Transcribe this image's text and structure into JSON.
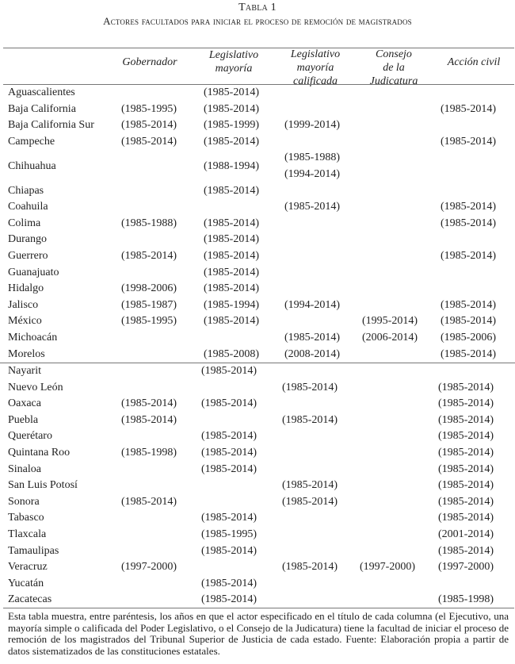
{
  "caption": {
    "label": "Tabla 1",
    "title": "Actores facultados para iniciar el proceso de remoción de magistrados"
  },
  "headers": [
    [
      "Gobernador"
    ],
    [
      "Legislativo",
      "mayoría"
    ],
    [
      "Legislativo",
      "mayoría",
      "calificada"
    ],
    [
      "Consejo",
      "de la",
      "Judicatura"
    ],
    [
      "Acción civil"
    ]
  ],
  "rows": [
    {
      "state": "Aguascalientes",
      "cells": [
        "",
        "(1985-2014)",
        "",
        "",
        ""
      ]
    },
    {
      "state": "Baja California",
      "cells": [
        "(1985-1995)",
        "(1985-2014)",
        "",
        "",
        "(1985-2014)"
      ]
    },
    {
      "state": "Baja California Sur",
      "cells": [
        "(1985-2014)",
        "(1985-1999)",
        "(1999-2014)",
        "",
        ""
      ]
    },
    {
      "state": "Campeche",
      "cells": [
        "(1985-2014)",
        "(1985-2014)",
        "",
        "",
        "(1985-2014)"
      ]
    },
    {
      "state": "Chihuahua",
      "cells": [
        "",
        "(1988-1994)",
        [
          "(1985-1988)",
          "(1994-2014)"
        ],
        "",
        ""
      ]
    },
    {
      "state": "Chiapas",
      "cells": [
        "",
        "(1985-2014)",
        "",
        "",
        ""
      ]
    },
    {
      "state": "Coahuila",
      "cells": [
        "",
        "",
        "(1985-2014)",
        "",
        "(1985-2014)"
      ]
    },
    {
      "state": "Colima",
      "cells": [
        "(1985-1988)",
        "(1985-2014)",
        "",
        "",
        "(1985-2014)"
      ]
    },
    {
      "state": "Durango",
      "cells": [
        "",
        "(1985-2014)",
        "",
        "",
        ""
      ]
    },
    {
      "state": "Guerrero",
      "cells": [
        "(1985-2014)",
        "(1985-2014)",
        "",
        "",
        "(1985-2014)"
      ]
    },
    {
      "state": "Guanajuato",
      "cells": [
        "",
        "(1985-2014)",
        "",
        "",
        ""
      ]
    },
    {
      "state": "Hidalgo",
      "cells": [
        "(1998-2006)",
        "(1985-2014)",
        "",
        "",
        ""
      ]
    },
    {
      "state": "Jalisco",
      "cells": [
        "(1985-1987)",
        "(1985-1994)",
        "(1994-2014)",
        "",
        "(1985-2014)"
      ]
    },
    {
      "state": "México",
      "cells": [
        "(1985-1995)",
        "(1985-2014)",
        "",
        "(1995-2014)",
        "(1985-2014)"
      ]
    },
    {
      "state": "Michoacán",
      "cells": [
        "",
        "",
        "(1985-2014)",
        "(2006-2014)",
        "(1985-2006)"
      ]
    },
    {
      "state": "Morelos",
      "cells": [
        "",
        "(1985-2008)",
        "(2008-2014)",
        "",
        "(1985-2014)"
      ]
    },
    {
      "state": "Nayarit",
      "cells": [
        "",
        "(1985-2014)",
        "",
        "",
        ""
      ]
    },
    {
      "state": "Nuevo León",
      "cells": [
        "",
        "",
        "(1985-2014)",
        "",
        "(1985-2014)"
      ]
    },
    {
      "state": "Oaxaca",
      "cells": [
        "(1985-2014)",
        "(1985-2014)",
        "",
        "",
        "(1985-2014)"
      ]
    },
    {
      "state": "Puebla",
      "cells": [
        "(1985-2014)",
        "",
        "(1985-2014)",
        "",
        "(1985-2014)"
      ]
    },
    {
      "state": "Querétaro",
      "cells": [
        "",
        "(1985-2014)",
        "",
        "",
        "(1985-2014)"
      ]
    },
    {
      "state": "Quintana Roo",
      "cells": [
        "(1985-1998)",
        "(1985-2014)",
        "",
        "",
        "(1985-2014)"
      ]
    },
    {
      "state": "Sinaloa",
      "cells": [
        "",
        "(1985-2014)",
        "",
        "",
        "(1985-2014)"
      ]
    },
    {
      "state": "San Luis Potosí",
      "cells": [
        "",
        "",
        "(1985-2014)",
        "",
        "(1985-2014)"
      ]
    },
    {
      "state": "Sonora",
      "cells": [
        "(1985-2014)",
        "",
        "(1985-2014)",
        "",
        "(1985-2014)"
      ]
    },
    {
      "state": "Tabasco",
      "cells": [
        "",
        "(1985-2014)",
        "",
        "",
        "(1985-2014)"
      ]
    },
    {
      "state": "Tlaxcala",
      "cells": [
        "",
        "(1985-1995)",
        "",
        "",
        "(2001-2014)"
      ]
    },
    {
      "state": "Tamaulipas",
      "cells": [
        "",
        "(1985-2014)",
        "",
        "",
        "(1985-2014)"
      ]
    },
    {
      "state": "Veracruz",
      "cells": [
        "(1997-2000)",
        "",
        "(1985-2014)",
        "(1997-2000)",
        "(1997-2000)"
      ]
    },
    {
      "state": "Yucatán",
      "cells": [
        "",
        "(1985-2014)",
        "",
        "",
        ""
      ]
    },
    {
      "state": "Zacatecas",
      "cells": [
        "",
        "(1985-2014)",
        "",
        "",
        "(1985-1998)"
      ]
    }
  ],
  "note": "Esta tabla muestra, entre paréntesis, los años en que el actor especificado en el título de cada columna (el Ejecutivo, una mayoría simple o calificada del Poder Legislativo, o el Consejo de la Judicatura) tiene la facultad de iniciar el proceso de remoción de los magistrados del Tribunal Superior de Justicia de cada estado. Fuente: Elaboración propia a partir de datos sistematizados de las constituciones estatales."
}
